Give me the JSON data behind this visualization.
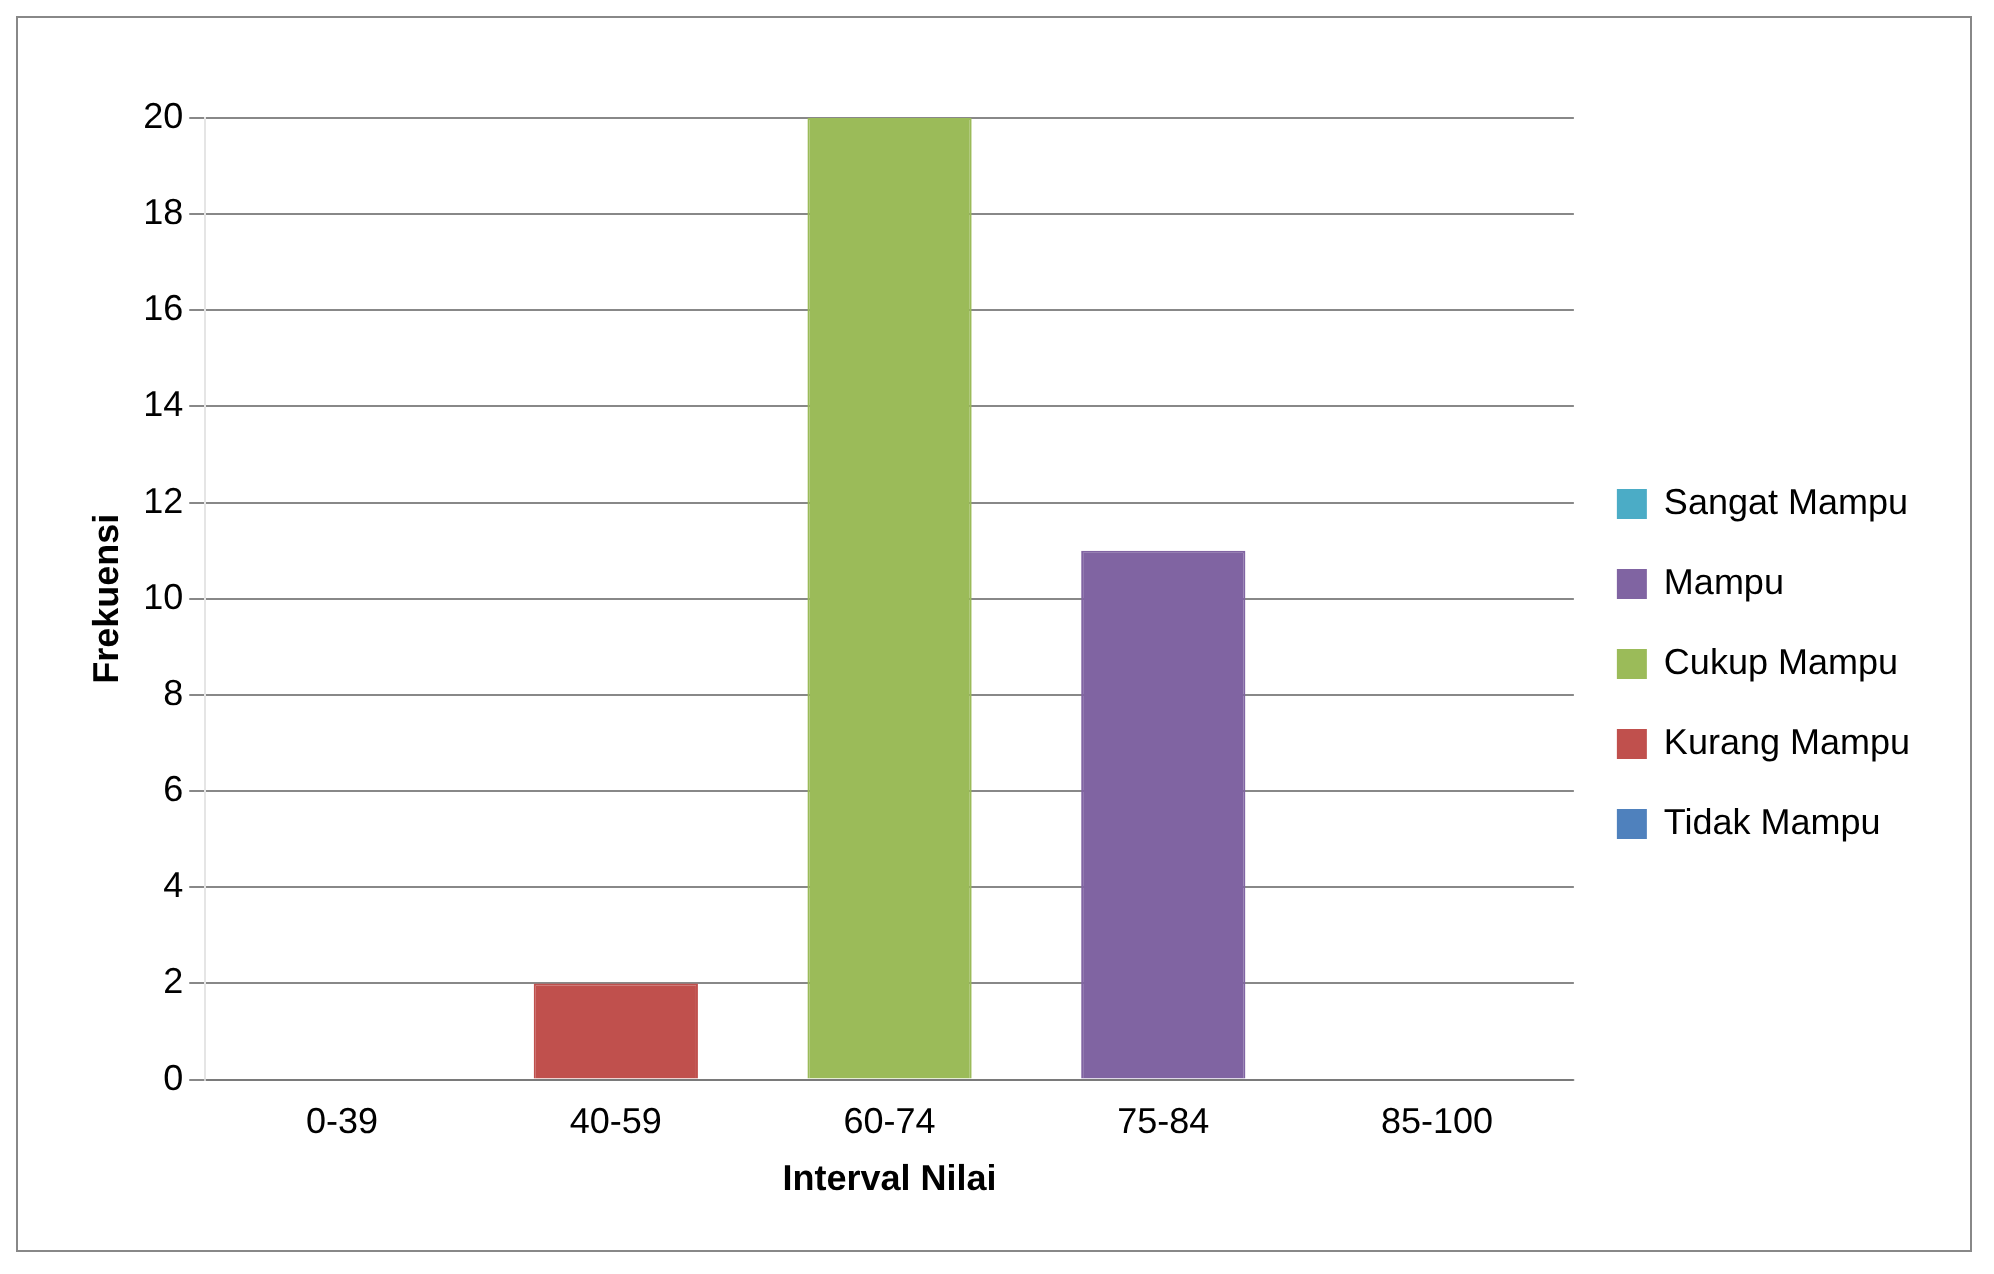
{
  "chart_data": {
    "type": "bar",
    "xlabel": "Interval Nilai",
    "ylabel": "Frekuensi",
    "categories": [
      "0-39",
      "40-59",
      "60-74",
      "75-84",
      "85-100"
    ],
    "series": [
      {
        "name": "Tidak Mampu",
        "color": "#4f81bd",
        "values": [
          0,
          null,
          null,
          null,
          null
        ]
      },
      {
        "name": "Kurang Mampu",
        "color": "#c0504d",
        "values": [
          null,
          2,
          null,
          null,
          null
        ]
      },
      {
        "name": "Cukup Mampu",
        "color": "#9bbb59",
        "values": [
          null,
          null,
          20,
          null,
          null
        ]
      },
      {
        "name": "Mampu",
        "color": "#8064a2",
        "values": [
          null,
          null,
          null,
          11,
          null
        ]
      },
      {
        "name": "Sangat Mampu",
        "color": "#4bacc6",
        "values": [
          null,
          null,
          null,
          null,
          0
        ]
      }
    ],
    "ylim": [
      0,
      20
    ],
    "yticks": [
      0,
      2,
      4,
      6,
      8,
      10,
      12,
      14,
      16,
      18,
      20
    ],
    "grid": "y",
    "legend": "right"
  }
}
